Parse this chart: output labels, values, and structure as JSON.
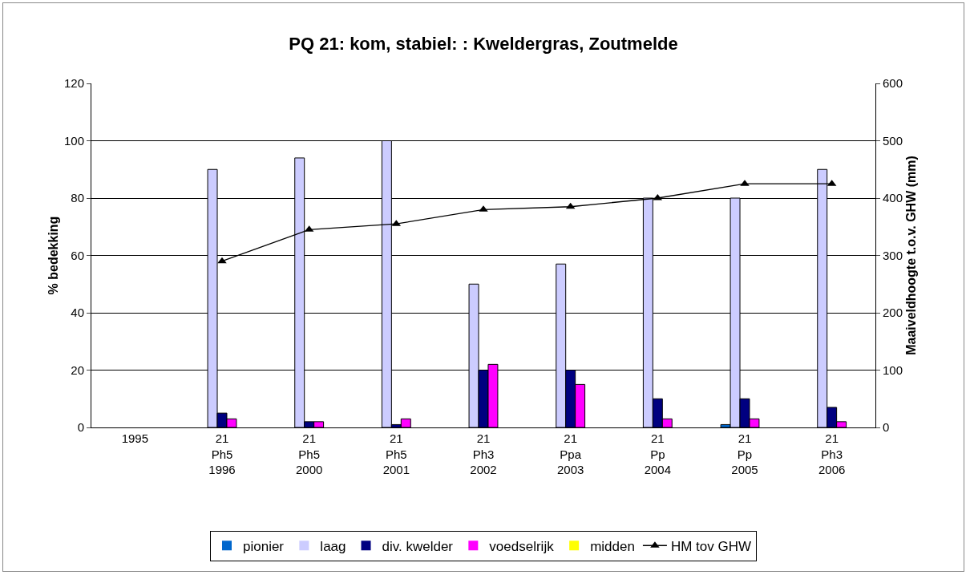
{
  "chart_data": {
    "type": "bar",
    "title": "PQ 21: kom, stabiel: : Kweldergras, Zoutmelde",
    "ylabel": "% bedekking",
    "y2label": "Maaiveldhoogte t.o.v. GHW (mm)",
    "categories": [
      "1995",
      "21\nPh5\n1996",
      "21\nPh5\n2000",
      "21\nPh5\n2001",
      "21\nPh3\n2002",
      "21\nPpa\n2003",
      "21\nPp\n2004",
      "21\nPp\n2005",
      "21\nPh3\n2006"
    ],
    "series": [
      {
        "name": "pionier",
        "color": "#0066cc",
        "values": [
          null,
          0,
          0,
          0,
          0,
          0,
          0,
          1,
          0
        ]
      },
      {
        "name": "laag",
        "color": "#ccccff",
        "values": [
          null,
          90,
          94,
          100,
          50,
          57,
          80,
          80,
          90
        ]
      },
      {
        "name": "div. kwelder",
        "color": "#000080",
        "values": [
          null,
          5,
          2,
          1,
          20,
          20,
          10,
          10,
          7
        ]
      },
      {
        "name": "voedselrijk",
        "color": "#ff00ff",
        "values": [
          null,
          3,
          2,
          3,
          22,
          15,
          3,
          3,
          2
        ]
      },
      {
        "name": "midden",
        "color": "#ffff00",
        "values": [
          null,
          0,
          0,
          0,
          0,
          0,
          0,
          0,
          0
        ]
      },
      {
        "name": "HM tov GHW",
        "type": "line",
        "axis": "y2",
        "color": "#000000",
        "marker": "triangle",
        "values": [
          null,
          290,
          345,
          355,
          380,
          385,
          400,
          425,
          425
        ]
      }
    ],
    "ylim": [
      0,
      120
    ],
    "yticks": [
      0,
      20,
      40,
      60,
      80,
      100,
      120
    ],
    "y2lim": [
      0,
      600
    ],
    "y2ticks": [
      0,
      100,
      200,
      300,
      400,
      500,
      600
    ],
    "grid": "y",
    "legend": "bottom"
  }
}
